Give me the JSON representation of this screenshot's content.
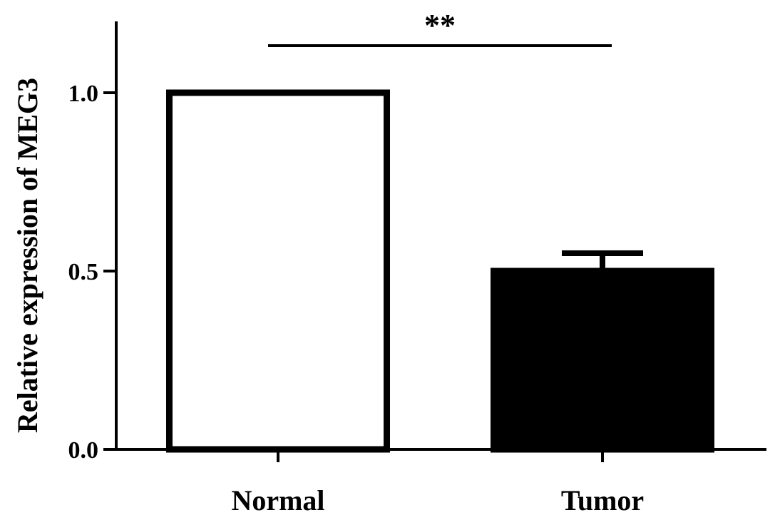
{
  "chart_data": {
    "type": "bar",
    "categories": [
      "Normal",
      "Tumor"
    ],
    "values": [
      1.0,
      0.5
    ],
    "error_upper": [
      0,
      0.05
    ],
    "bar_fill": [
      "#ffffff",
      "#000000"
    ],
    "bar_stroke": "#000000",
    "ylabel": "Relative expression of MEG3",
    "xlabel": "",
    "ylim": [
      0,
      1.2
    ],
    "yticks": [
      0.0,
      0.5,
      1.0
    ],
    "ytick_labels": [
      "0.0",
      "0.5",
      "1.0"
    ],
    "significance": {
      "label": "**",
      "between": [
        "Normal",
        "Tumor"
      ]
    },
    "grid": false,
    "legend": "none"
  }
}
